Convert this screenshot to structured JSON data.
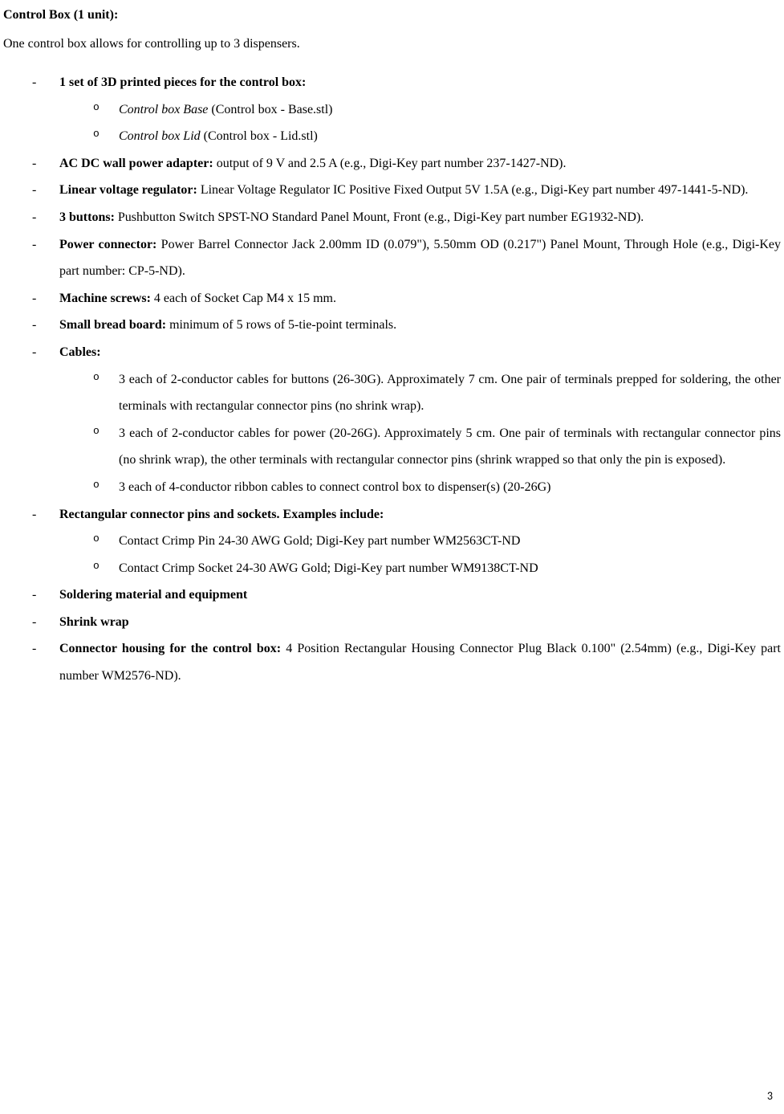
{
  "heading": "Control Box (1 unit):",
  "intro": "One control box allows for controlling up to 3 dispensers.",
  "items": [
    {
      "bold": "1 set of 3D printed pieces for the control box:",
      "rest": "",
      "sub": [
        {
          "italic": "Control box Base",
          "rest": " (Control box - Base.stl)"
        },
        {
          "italic": "Control box Lid",
          "rest": " (Control box - Lid.stl)"
        }
      ]
    },
    {
      "bold": "AC DC wall power adapter:",
      "rest": " output of 9 V and 2.5 A (e.g., Digi-Key part number 237-1427-ND)."
    },
    {
      "bold": "Linear voltage regulator:",
      "rest": " Linear Voltage Regulator IC Positive Fixed Output 5V 1.5A (e.g., Digi-Key part number 497-1441-5-ND)."
    },
    {
      "bold": "3 buttons:",
      "rest": " Pushbutton Switch SPST-NO Standard Panel Mount, Front (e.g., Digi-Key part number EG1932-ND)."
    },
    {
      "bold": "Power connector:",
      "rest": " Power Barrel Connector Jack 2.00mm ID (0.079\"), 5.50mm OD (0.217\") Panel Mount, Through Hole (e.g., Digi-Key part number: CP-5-ND)."
    },
    {
      "bold": "Machine screws:",
      "rest": " 4 each of Socket Cap M4 x 15 mm."
    },
    {
      "bold": "Small bread board:",
      "rest": " minimum of 5 rows of 5-tie-point terminals."
    },
    {
      "bold": "Cables:",
      "rest": "",
      "sub": [
        {
          "rest": "3 each of 2-conductor cables for buttons (26-30G). Approximately 7 cm. One pair of terminals prepped for soldering, the other terminals with rectangular connector pins (no shrink wrap)."
        },
        {
          "rest": "3 each of 2-conductor cables for power (20-26G). Approximately 5 cm. One pair of terminals with rectangular connector pins (no shrink wrap), the other terminals with rectangular connector pins (shrink wrapped so that only the pin is exposed)."
        },
        {
          "rest": "3 each of 4-conductor ribbon cables to connect control box to dispenser(s) (20-26G)"
        }
      ]
    },
    {
      "bold": "Rectangular connector pins and sockets. Examples include:",
      "rest": "",
      "sub": [
        {
          "rest": "Contact Crimp Pin 24-30 AWG Gold; Digi-Key part number WM2563CT-ND"
        },
        {
          "rest": "Contact Crimp Socket 24-30 AWG Gold; Digi-Key part number WM9138CT-ND"
        }
      ]
    },
    {
      "bold": "Soldering material and equipment",
      "rest": ""
    },
    {
      "bold": "Shrink wrap",
      "rest": ""
    },
    {
      "bold": "Connector housing for the control box:",
      "rest": " 4 Position Rectangular Housing Connector Plug Black 0.100\" (2.54mm) (e.g., Digi-Key part number WM2576-ND)."
    }
  ],
  "page_number": "3"
}
